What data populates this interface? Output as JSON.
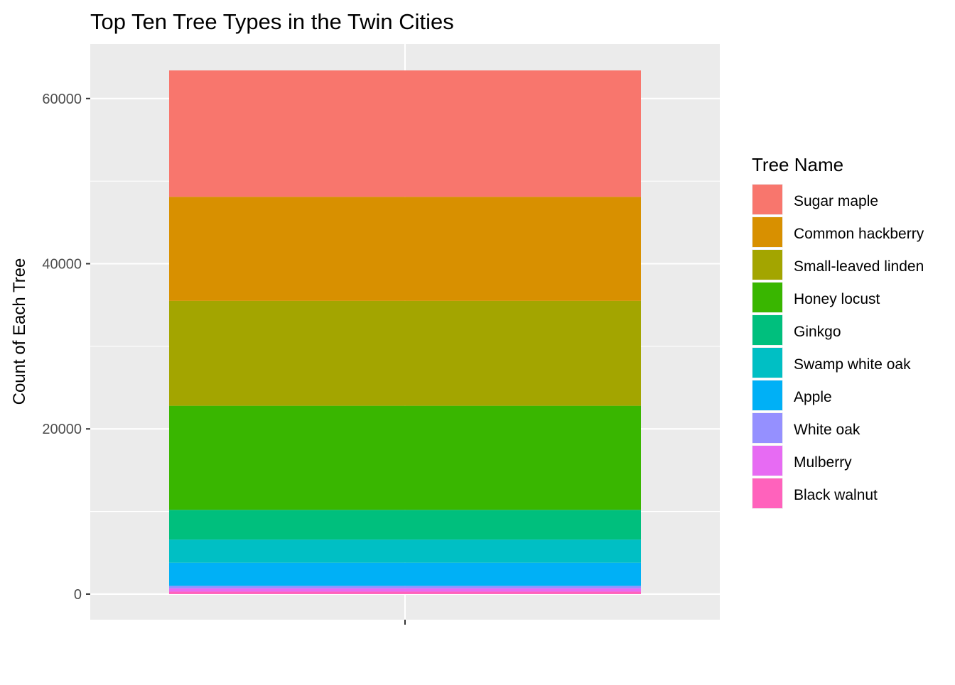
{
  "chart_data": {
    "type": "bar",
    "stacked": true,
    "title": "Top Ten Tree Types in the Twin Cities",
    "xlabel": "",
    "ylabel": "Count of Each Tree",
    "ylim": [
      -3100,
      66600
    ],
    "y_ticks": [
      0,
      20000,
      40000,
      60000
    ],
    "y_tick_labels": [
      "0",
      "20000",
      "40000",
      "60000"
    ],
    "categories": [
      ""
    ],
    "grid": true,
    "legend_position": "right",
    "legend_title": "Tree Name",
    "series": [
      {
        "name": "Sugar maple",
        "values": [
          15300
        ],
        "color": "#F8766D"
      },
      {
        "name": "Common hackberry",
        "values": [
          12600
        ],
        "color": "#D89000"
      },
      {
        "name": "Small-leaved linden",
        "values": [
          12700
        ],
        "color": "#A3A500"
      },
      {
        "name": "Honey locust",
        "values": [
          12600
        ],
        "color": "#39B600"
      },
      {
        "name": "Ginkgo",
        "values": [
          3600
        ],
        "color": "#00BF7D"
      },
      {
        "name": "Swamp white oak",
        "values": [
          2800
        ],
        "color": "#00BFC4"
      },
      {
        "name": "Apple",
        "values": [
          2800
        ],
        "color": "#00B0F6"
      },
      {
        "name": "White oak",
        "values": [
          300
        ],
        "color": "#9590FF"
      },
      {
        "name": "Mulberry",
        "values": [
          400
        ],
        "color": "#E76BF3"
      },
      {
        "name": "Black walnut",
        "values": [
          300
        ],
        "color": "#FF62BC"
      }
    ]
  }
}
